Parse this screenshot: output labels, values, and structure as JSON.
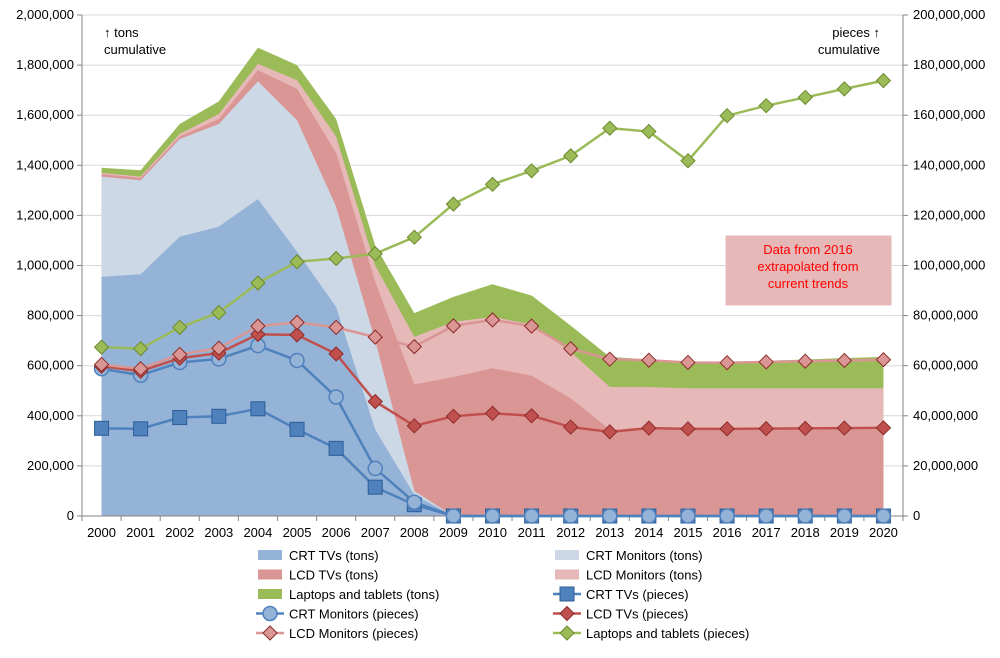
{
  "chart_data": {
    "type": "area",
    "categories": [
      "2000",
      "2001",
      "2002",
      "2003",
      "2004",
      "2005",
      "2006",
      "2007",
      "2008",
      "2009",
      "2010",
      "2011",
      "2012",
      "2013",
      "2014",
      "2015",
      "2016",
      "2017",
      "2018",
      "2019",
      "2020"
    ],
    "y_left": {
      "ylim": [
        0,
        2000000
      ],
      "ticks": [
        0,
        200000,
        400000,
        600000,
        800000,
        1000000,
        1200000,
        1400000,
        1600000,
        1800000,
        2000000
      ],
      "tick_labels": [
        "0",
        "200,000",
        "400,000",
        "600,000",
        "800,000",
        "1,000,000",
        "1,200,000",
        "1,400,000",
        "1,600,000",
        "1,800,000",
        "2,000,000"
      ],
      "label": "↑ tons\ncumulative"
    },
    "y_right": {
      "ylim": [
        0,
        200000000
      ],
      "ticks": [
        0,
        20000000,
        40000000,
        60000000,
        80000000,
        100000000,
        120000000,
        140000000,
        160000000,
        180000000,
        200000000
      ],
      "tick_labels": [
        "0",
        "20,000,000",
        "40,000,000",
        "60,000,000",
        "80,000,000",
        "100,000,000",
        "120,000,000",
        "140,000,000",
        "160,000,000",
        "180,000,000",
        "200,000,000"
      ],
      "label": "pieces ↑\ncumulative"
    },
    "grid": true,
    "area_series_cumulative_tons": [
      {
        "name": "CRT TVs (tons)",
        "color": "#95b3d7",
        "values": [
          955000,
          965000,
          1115000,
          1155000,
          1265000,
          1055000,
          835000,
          345000,
          85000,
          0,
          0,
          0,
          0,
          0,
          0,
          0,
          0,
          0,
          0,
          0,
          0
        ]
      },
      {
        "name": "CRT Monitors (tons)",
        "color": "#ccd8e6",
        "values": [
          1355000,
          1340000,
          1505000,
          1565000,
          1735000,
          1580000,
          1235000,
          700000,
          100000,
          0,
          0,
          0,
          0,
          0,
          0,
          0,
          0,
          0,
          0,
          0,
          0
        ]
      },
      {
        "name": "LCD TVs (tons)",
        "color": "#da9694",
        "values": [
          1365000,
          1350000,
          1515000,
          1585000,
          1780000,
          1705000,
          1450000,
          935000,
          525000,
          555000,
          590000,
          560000,
          470000,
          345000,
          345000,
          345000,
          345000,
          345000,
          345000,
          345000,
          345000
        ]
      },
      {
        "name": "LCD Monitors (tons)",
        "color": "#e6b9b8",
        "values": [
          1370000,
          1355000,
          1525000,
          1605000,
          1805000,
          1740000,
          1515000,
          1000000,
          715000,
          775000,
          795000,
          765000,
          655000,
          515000,
          515000,
          510000,
          510000,
          510000,
          510000,
          510000,
          510000
        ]
      },
      {
        "name": "Laptops and tablets (tons)",
        "color": "#9bbb59",
        "values": [
          1390000,
          1380000,
          1565000,
          1655000,
          1870000,
          1800000,
          1585000,
          1080000,
          810000,
          875000,
          925000,
          880000,
          760000,
          635000,
          625000,
          610000,
          615000,
          620000,
          625000,
          630000,
          635000
        ]
      }
    ],
    "line_series_pieces": [
      {
        "name": "CRT TVs (pieces)",
        "color": "#4f81bd",
        "marker": "square",
        "values": [
          35000000,
          34800000,
          39300000,
          39800000,
          42800000,
          34600000,
          27000000,
          11500000,
          4500000,
          0,
          0,
          0,
          0,
          0,
          0,
          0,
          0,
          0,
          0,
          0,
          0
        ]
      },
      {
        "name": "CRT Monitors (pieces)",
        "color": "#4f81bd",
        "marker": "circle",
        "values": [
          58800000,
          56200000,
          61300000,
          62700000,
          68000000,
          62100000,
          47500000,
          19000000,
          5500000,
          0,
          0,
          0,
          0,
          0,
          0,
          0,
          0,
          0,
          0,
          0,
          0
        ]
      },
      {
        "name": "LCD TVs (pieces)",
        "color": "#c0504d",
        "marker": "diamond",
        "values": [
          59800000,
          57800000,
          63000000,
          65000000,
          72500000,
          72300000,
          64700000,
          45700000,
          36000000,
          39800000,
          41000000,
          40000000,
          35500000,
          33600000,
          35100000,
          34800000,
          34800000,
          34900000,
          35000000,
          35100000,
          35200000
        ]
      },
      {
        "name": "LCD Monitors (pieces)",
        "color": "#da9694",
        "marker": "diamond",
        "values": [
          60500000,
          58800000,
          64500000,
          67000000,
          75800000,
          77300000,
          75300000,
          71400000,
          67600000,
          75900000,
          78300000,
          75800000,
          66800000,
          62600000,
          62200000,
          61300000,
          61200000,
          61500000,
          61800000,
          62100000,
          62400000
        ]
      },
      {
        "name": "Laptops and tablets (pieces)",
        "color": "#9bbb59",
        "marker": "diamond",
        "values": [
          67400000,
          66800000,
          75300000,
          81200000,
          93000000,
          101500000,
          102800000,
          104700000,
          111300000,
          124500000,
          132400000,
          137800000,
          143800000,
          154800000,
          153500000,
          141800000,
          159800000,
          163800000,
          167100000,
          170500000,
          173800000
        ]
      }
    ],
    "annotation": "Data from 2016\nextrapolated from\ncurrent trends",
    "legend_position": "bottom",
    "legend": [
      "CRT TVs (tons)",
      "CRT Monitors (tons)",
      "LCD TVs (tons)",
      "LCD Monitors (tons)",
      "Laptops and tablets (tons)",
      "CRT TVs (pieces)",
      "CRT Monitors (pieces)",
      "LCD TVs (pieces)",
      "LCD Monitors (pieces)",
      "Laptops and tablets (pieces)"
    ]
  }
}
